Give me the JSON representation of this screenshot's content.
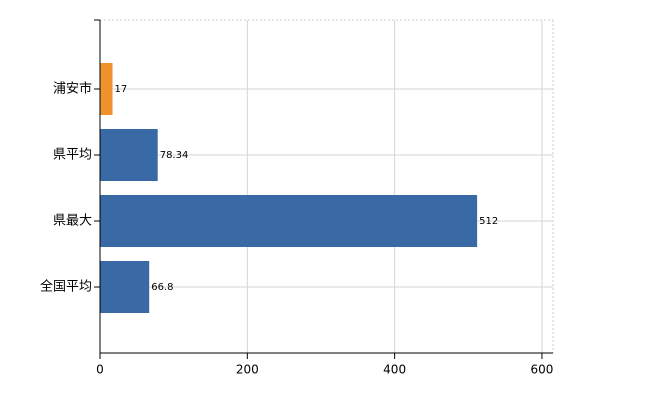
{
  "chart_data": {
    "type": "hbar",
    "categories": [
      "浦安市",
      "県平均",
      "県最大",
      "全国平均"
    ],
    "values": [
      17,
      78.34,
      512,
      66.8
    ],
    "colors": [
      "#f0922e",
      "#3a6aa6",
      "#3a6aa6",
      "#3a6aa6"
    ],
    "xlim": [
      0,
      615
    ],
    "xticks": [
      0,
      200,
      400,
      600
    ],
    "grid": true
  }
}
